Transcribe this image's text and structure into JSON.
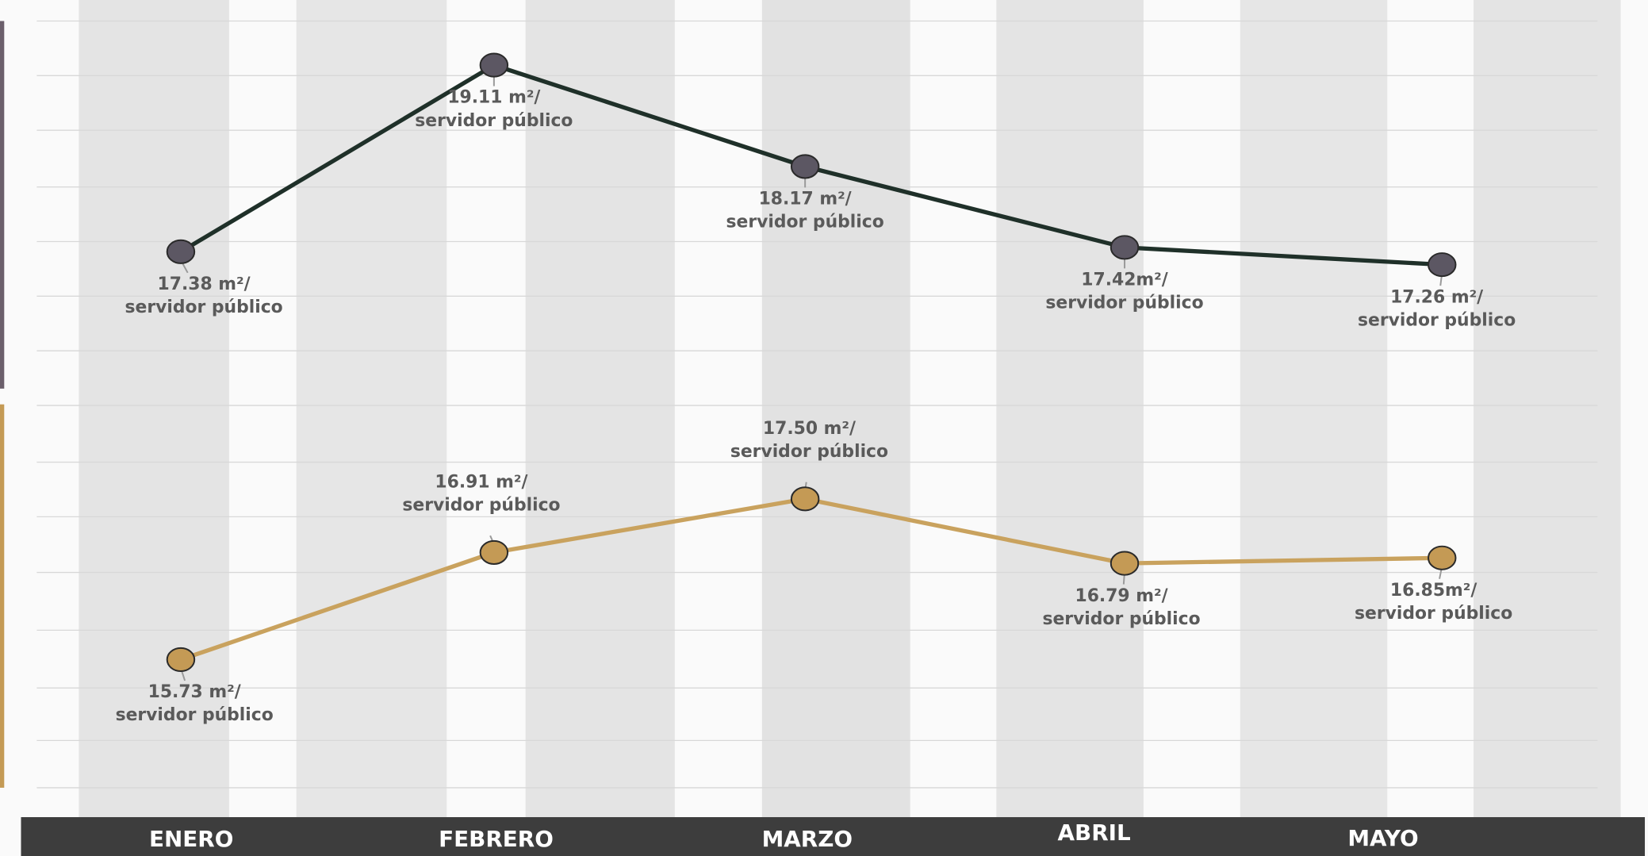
{
  "chart_data": {
    "type": "line",
    "categories": [
      "ENERO",
      "FEBRERO",
      "MARZO",
      "ABRIL",
      "MAYO"
    ],
    "series": [
      {
        "color": "#1f3029",
        "marker_color": "#5c5763",
        "values": [
          17.38,
          19.11,
          18.17,
          17.42,
          17.26
        ],
        "value_labels": [
          [
            "17.38 m²/",
            "servidor público"
          ],
          [
            "19.11 m²/",
            "servidor público"
          ],
          [
            "18.17 m²/",
            "servidor público"
          ],
          [
            "17.42m²/",
            "servidor público"
          ],
          [
            "17.26 m²/",
            "servidor público"
          ]
        ]
      },
      {
        "color": "#c9a25e",
        "marker_color": "#c49a55",
        "values": [
          15.73,
          16.91,
          17.5,
          16.79,
          16.85
        ],
        "value_labels": [
          [
            "15.73  m²/",
            "servidor público"
          ],
          [
            "16.91 m²/",
            "servidor público"
          ],
          [
            "17.50 m²/",
            "servidor público"
          ],
          [
            "16.79 m²/",
            "servidor público"
          ],
          [
            "16.85m²/",
            "servidor público"
          ]
        ]
      }
    ]
  }
}
